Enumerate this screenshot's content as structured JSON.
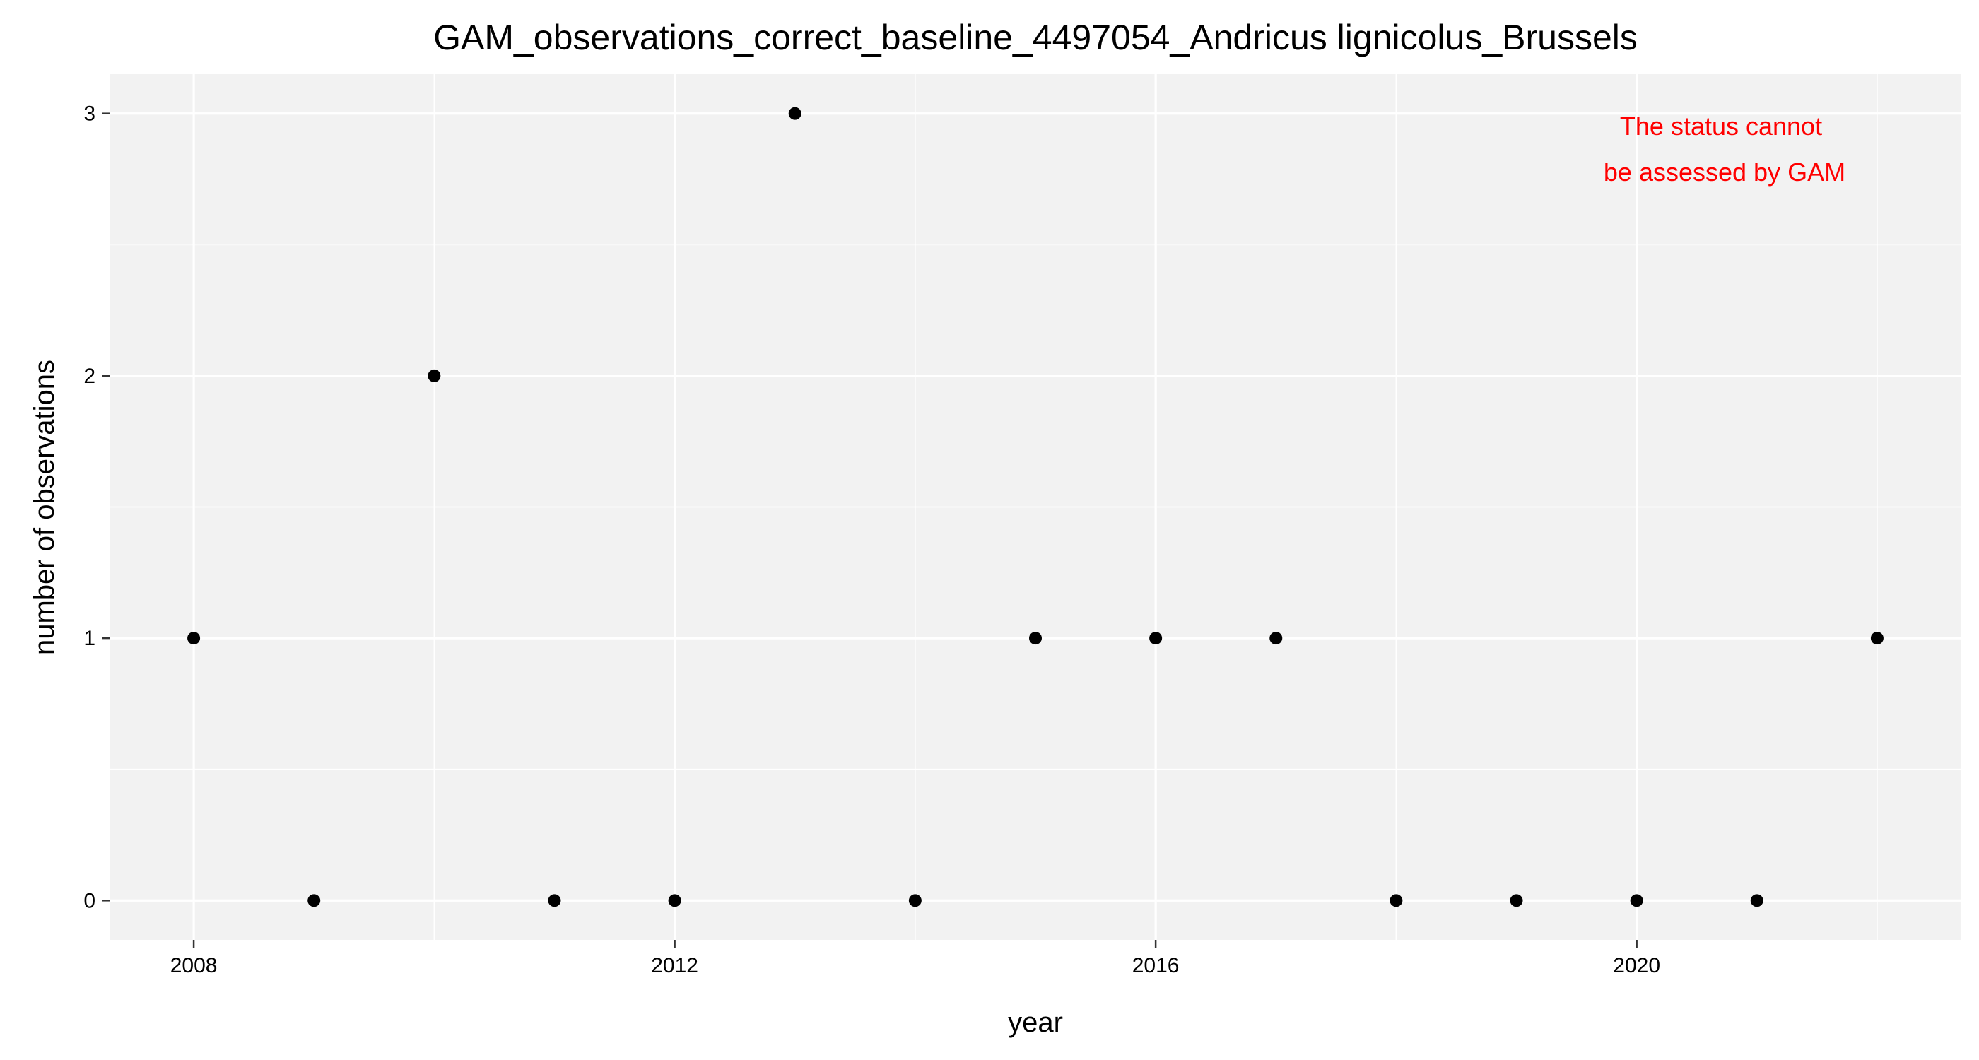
{
  "chart_data": {
    "type": "scatter",
    "title": "GAM_observations_correct_baseline_4497054_Andricus lignicolus_Brussels",
    "xlabel": "year",
    "ylabel": "number of observations",
    "xlim": [
      2007.3,
      2022.7
    ],
    "ylim": [
      -0.15,
      3.15
    ],
    "x_ticks": [
      2008,
      2012,
      2016,
      2020
    ],
    "y_ticks": [
      0,
      1,
      2,
      3
    ],
    "x_tick_labels": [
      "2008",
      "2012",
      "2016",
      "2020"
    ],
    "y_tick_labels": [
      "0",
      "1",
      "2",
      "3"
    ],
    "grid": true,
    "legend": "none",
    "panel_background": "#f2f2f2",
    "grid_color": "#ffffff",
    "point_color": "#000000",
    "series": [
      {
        "x": [
          2008,
          2009,
          2010,
          2011,
          2012,
          2013,
          2014,
          2015,
          2016,
          2017,
          2018,
          2019,
          2020,
          2021,
          2022
        ],
        "y": [
          1,
          0,
          2,
          0,
          0,
          3,
          0,
          1,
          1,
          1,
          0,
          0,
          0,
          0,
          1
        ]
      }
    ],
    "annotation": {
      "lines": [
        "The status cannot",
        "be assessed by GAM"
      ],
      "color": "#ff0000",
      "position": "top-right"
    }
  }
}
